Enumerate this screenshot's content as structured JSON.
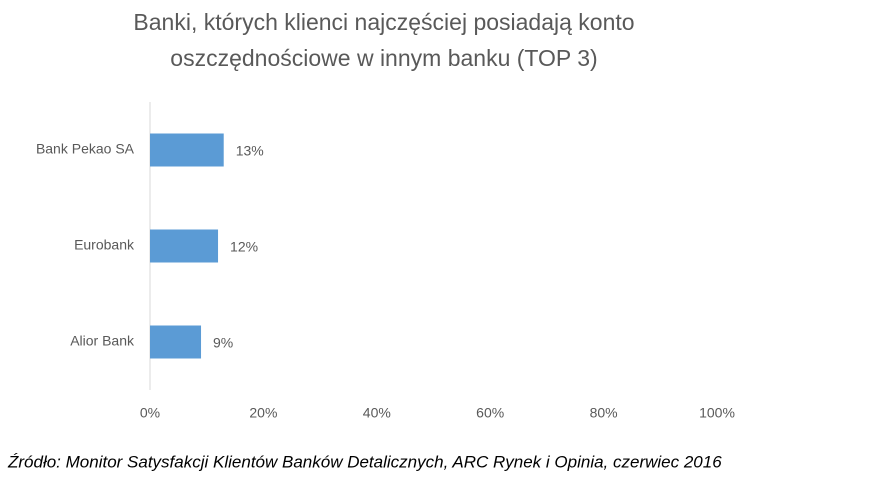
{
  "chart_data": {
    "type": "bar",
    "orientation": "horizontal",
    "title": [
      "Banki, których klienci najczęściej posiadają konto",
      "oszczędnościowe  w innym banku (TOP 3)"
    ],
    "categories": [
      "Bank Pekao SA",
      "Eurobank",
      "Alior Bank"
    ],
    "values": [
      13,
      12,
      9
    ],
    "value_labels": [
      "13%",
      "12%",
      "9%"
    ],
    "color": "#5b9bd5",
    "xlim": [
      0,
      100
    ],
    "xticks": [
      {
        "value": 0,
        "label": "0%"
      },
      {
        "value": 20,
        "label": "20%"
      },
      {
        "value": 40,
        "label": "40%"
      },
      {
        "value": 60,
        "label": "60%"
      },
      {
        "value": 80,
        "label": "80%"
      },
      {
        "value": 100,
        "label": "100%"
      }
    ],
    "grid": false,
    "source": "Źródło: Monitor Satysfakcji Klientów Banków Detalicznych, ARC Rynek i Opinia, czerwiec 2016"
  }
}
